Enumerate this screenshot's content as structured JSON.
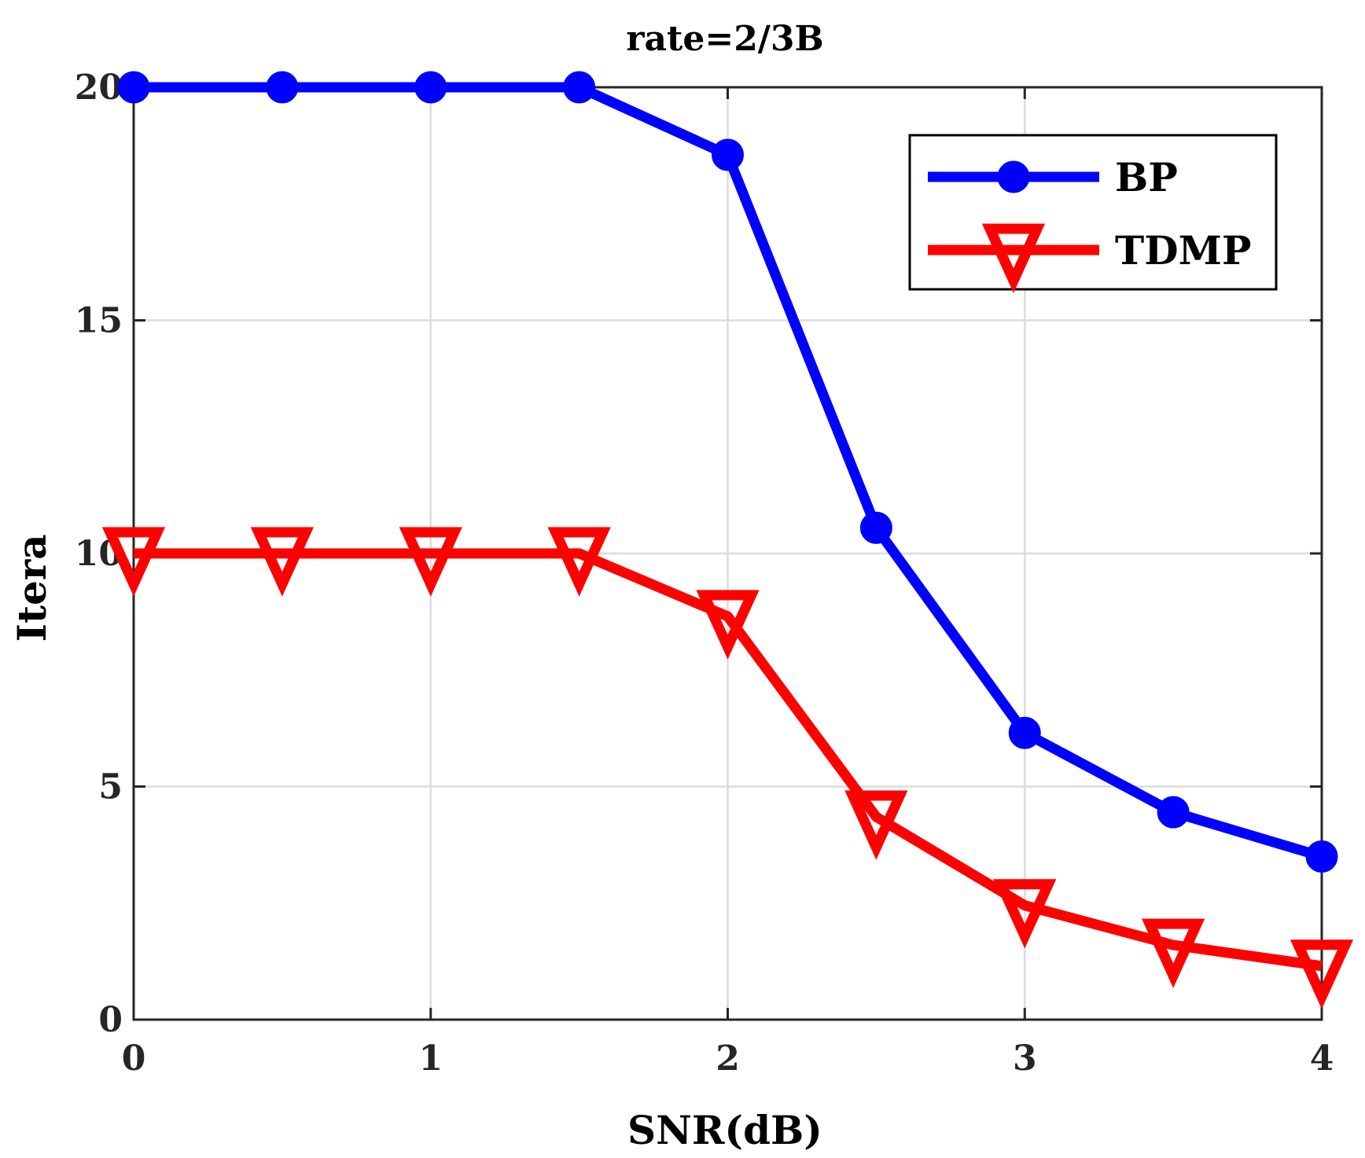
{
  "chart_data": {
    "type": "line",
    "title": "rate=2/3B",
    "xlabel": "SNR(dB)",
    "ylabel": "Itera",
    "xlim": [
      0,
      4
    ],
    "ylim": [
      0,
      20
    ],
    "xticks": [
      0,
      1,
      2,
      3,
      4
    ],
    "yticks": [
      0,
      5,
      10,
      15,
      20
    ],
    "grid": true,
    "legend_position": "top-right",
    "x": [
      0,
      0.5,
      1,
      1.5,
      2,
      2.5,
      3,
      3.5,
      4
    ],
    "series": [
      {
        "name": "BP",
        "color": "#0000ff",
        "marker": "circle",
        "values": [
          20,
          20,
          20,
          20,
          18.55,
          10.55,
          6.15,
          4.45,
          3.5
        ]
      },
      {
        "name": "TDMP",
        "color": "#ff0000",
        "marker": "triangle-down",
        "values": [
          10,
          10,
          10,
          10,
          8.65,
          4.35,
          2.45,
          1.6,
          1.15
        ]
      }
    ]
  }
}
